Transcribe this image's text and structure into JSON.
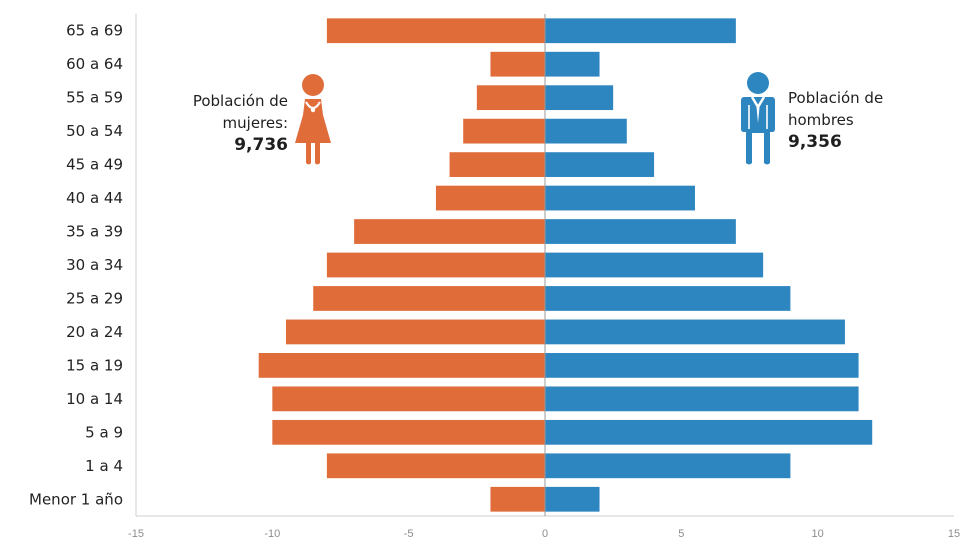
{
  "chart_data": {
    "type": "bar",
    "orientation": "horizontal",
    "title": "",
    "xlabel": "",
    "ylabel": "",
    "xlim": [
      -15,
      15
    ],
    "x_ticks": [
      -15,
      -10,
      -5,
      0,
      5,
      10,
      15
    ],
    "x_tick_labels": [
      "-15",
      "-10",
      "-5",
      "0",
      "5",
      "10",
      "15"
    ],
    "categories": [
      "65 a 69",
      "60 a 64",
      "55 a 59",
      "50 a 54",
      "45 a 49",
      "40 a 44",
      "35 a 39",
      "30 a 34",
      "25 a 29",
      "20 a 24",
      "15 a 19",
      "10 a 14",
      "5 a 9",
      "1 a 4",
      "Menor 1 año"
    ],
    "series": [
      {
        "key": "women",
        "color": "#e06c3a",
        "values": [
          -8,
          -2,
          -2.5,
          -3,
          -3.5,
          -4,
          -7,
          -8,
          -8.5,
          -9.5,
          -10.5,
          -10,
          -10,
          -8,
          -2
        ]
      },
      {
        "key": "men",
        "color": "#2e86c1",
        "values": [
          7,
          2,
          2.5,
          3,
          4,
          5.5,
          7,
          8,
          9,
          11,
          11.5,
          11.5,
          12,
          9,
          2
        ]
      }
    ],
    "grid": false
  },
  "annotations": {
    "women": {
      "line1": "Población de",
      "line2": "mujeres:",
      "total": "9,736",
      "icon": "woman-icon"
    },
    "men": {
      "line1": "Población de",
      "line2": "hombres",
      "total": "9,356",
      "icon": "man-icon"
    }
  }
}
